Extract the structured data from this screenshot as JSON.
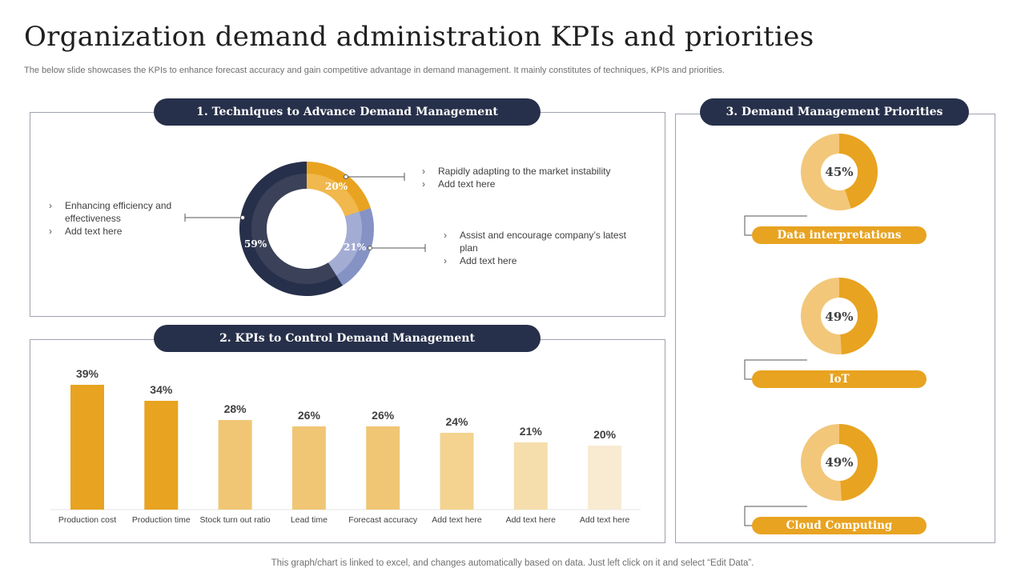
{
  "title": "Organization demand administration KPIs and priorities",
  "subtitle": "The below slide showcases the KPIs to enhance forecast accuracy and gain competitive advantage in demand management. It mainly constitutes of techniques, KPIs and priorities.",
  "footer": "This graph/chart is linked to excel, and changes automatically based on data. Just left click on it and select “Edit Data”.",
  "section1": {
    "title": "1. Techniques to Advance Demand Management",
    "note_left": [
      "Enhancing efficiency and effectiveness",
      "Add text here"
    ],
    "note_top": [
      "Rapidly adapting to the market instability",
      "Add text here"
    ],
    "note_right": [
      "Assist and encourage company’s latest plan",
      "Add text here"
    ]
  },
  "section2": {
    "title": "2. KPIs to Control Demand Management"
  },
  "section3": {
    "title": "3. Demand Management Priorities"
  },
  "chart_data": [
    {
      "type": "pie",
      "variant": "donut",
      "labels": [
        "20%",
        "21%",
        "59%"
      ],
      "values": [
        20,
        21,
        59
      ],
      "colors": [
        "#e8a321",
        "#8592c4",
        "#27304a"
      ]
    },
    {
      "type": "bar",
      "categories": [
        "Production cost",
        "Production time",
        "Stock turn out ratio",
        "Lead time",
        "Forecast accuracy",
        "Add text here",
        "Add text here",
        "Add text here"
      ],
      "values": [
        39,
        34,
        28,
        26,
        26,
        24,
        21,
        20
      ],
      "value_labels": [
        "39%",
        "34%",
        "28%",
        "26%",
        "26%",
        "24%",
        "21%",
        "20%"
      ],
      "colors": [
        "#e8a321",
        "#e8a321",
        "#f0c674",
        "#f0c674",
        "#f0c674",
        "#f3d38f",
        "#f5deac",
        "#f9ebd2"
      ],
      "ylim": [
        0,
        40
      ],
      "grid": false,
      "legend": "none"
    },
    {
      "type": "pie",
      "variant": "donut",
      "series": [
        {
          "name": "Data interpretations",
          "value": 45,
          "label": "45%"
        },
        {
          "name": "IoT",
          "value": 49,
          "label": "49%"
        },
        {
          "name": "Cloud Computing",
          "value": 49,
          "label": "49%"
        }
      ],
      "colors": [
        "#e8a321",
        "#f2c77a"
      ]
    }
  ]
}
